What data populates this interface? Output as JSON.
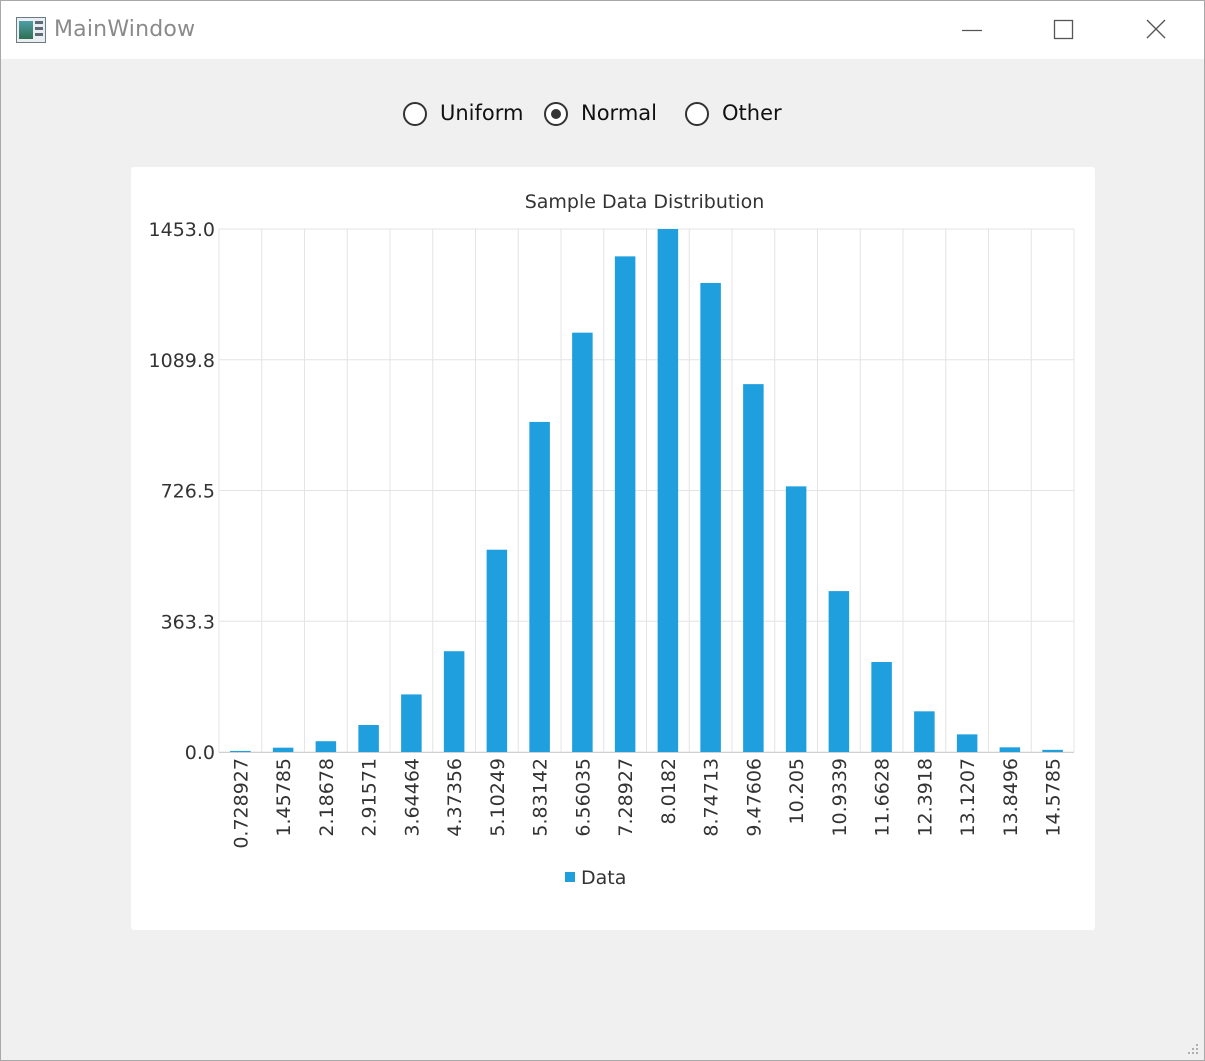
{
  "window": {
    "title": "MainWindow",
    "controls": {
      "minimize": "minimize-icon",
      "maximize": "maximize-icon",
      "close": "close-icon"
    }
  },
  "radios": [
    {
      "label": "Uniform",
      "checked": false
    },
    {
      "label": "Normal",
      "checked": true
    },
    {
      "label": "Other",
      "checked": false
    }
  ],
  "chart_data": {
    "type": "bar",
    "title": "Sample Data Distribution",
    "xlabel": "",
    "ylabel": "",
    "ylim": [
      0,
      1453.0
    ],
    "y_ticks": [
      "0.0",
      "363.3",
      "726.5",
      "1089.8",
      "1453.0"
    ],
    "categories": [
      "0.728927",
      "1.45785",
      "2.18678",
      "2.91571",
      "3.64464",
      "4.37356",
      "5.10249",
      "5.83142",
      "6.56035",
      "7.28927",
      "8.0182",
      "8.74713",
      "9.47606",
      "10.205",
      "10.9339",
      "11.6628",
      "12.3918",
      "13.1207",
      "13.8496",
      "14.5785"
    ],
    "series": [
      {
        "name": "Data",
        "color": "#209fdf",
        "values": [
          3,
          12,
          30,
          75,
          160,
          280,
          562,
          917,
          1165,
          1377,
          1453,
          1303,
          1022,
          738,
          447,
          250,
          113,
          49,
          13,
          6
        ]
      }
    ],
    "grid": true,
    "legend_position": "bottom"
  }
}
